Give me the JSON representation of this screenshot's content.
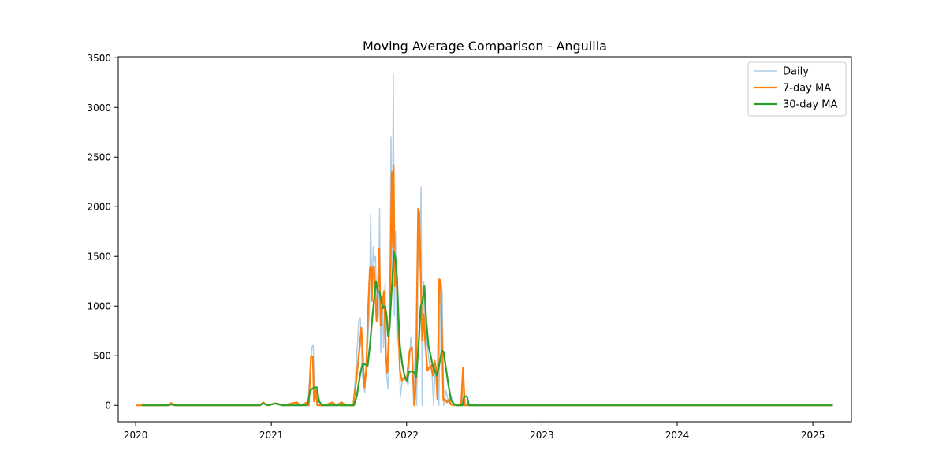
{
  "chart_data": {
    "type": "line",
    "title": "Moving Average Comparison - Anguilla",
    "xlabel": "",
    "ylabel": "",
    "x_type": "date",
    "xlim": [
      "2019-11-15",
      "2025-04-15"
    ],
    "ylim": [
      -165,
      3510
    ],
    "x_ticks": [
      {
        "value": "2020-01-01",
        "label": "2020"
      },
      {
        "value": "2021-01-01",
        "label": "2021"
      },
      {
        "value": "2022-01-01",
        "label": "2022"
      },
      {
        "value": "2023-01-01",
        "label": "2023"
      },
      {
        "value": "2024-01-01",
        "label": "2024"
      },
      {
        "value": "2025-01-01",
        "label": "2025"
      }
    ],
    "y_ticks": [
      {
        "value": 0,
        "label": "0"
      },
      {
        "value": 500,
        "label": "500"
      },
      {
        "value": 1000,
        "label": "1000"
      },
      {
        "value": 1500,
        "label": "1500"
      },
      {
        "value": 2000,
        "label": "2000"
      },
      {
        "value": 2500,
        "label": "2500"
      },
      {
        "value": 3000,
        "label": "3000"
      },
      {
        "value": 3500,
        "label": "3500"
      }
    ],
    "grid": false,
    "legend_position": "top-right",
    "series": [
      {
        "name": "Daily",
        "color": "#aecde6",
        "points": [
          [
            "2020-01-03",
            0
          ],
          [
            "2020-04-01",
            0
          ],
          [
            "2020-04-05",
            20
          ],
          [
            "2020-04-10",
            0
          ],
          [
            "2020-12-01",
            0
          ],
          [
            "2020-12-10",
            30
          ],
          [
            "2020-12-20",
            0
          ],
          [
            "2021-01-15",
            20
          ],
          [
            "2021-02-01",
            0
          ],
          [
            "2021-03-10",
            30
          ],
          [
            "2021-03-20",
            0
          ],
          [
            "2021-04-10",
            30
          ],
          [
            "2021-04-20",
            580
          ],
          [
            "2021-04-24",
            610
          ],
          [
            "2021-04-28",
            40
          ],
          [
            "2021-05-03",
            150
          ],
          [
            "2021-05-07",
            0
          ],
          [
            "2021-05-25",
            0
          ],
          [
            "2021-06-15",
            30
          ],
          [
            "2021-06-25",
            0
          ],
          [
            "2021-07-10",
            30
          ],
          [
            "2021-07-20",
            0
          ],
          [
            "2021-08-10",
            0
          ],
          [
            "2021-08-18",
            400
          ],
          [
            "2021-08-25",
            850
          ],
          [
            "2021-08-29",
            880
          ],
          [
            "2021-09-04",
            300
          ],
          [
            "2021-09-10",
            130
          ],
          [
            "2021-09-16",
            500
          ],
          [
            "2021-09-22",
            900
          ],
          [
            "2021-09-26",
            1920
          ],
          [
            "2021-09-29",
            1100
          ],
          [
            "2021-10-03",
            1600
          ],
          [
            "2021-10-06",
            1450
          ],
          [
            "2021-10-09",
            1500
          ],
          [
            "2021-10-13",
            850
          ],
          [
            "2021-10-17",
            900
          ],
          [
            "2021-10-20",
            1980
          ],
          [
            "2021-10-23",
            530
          ],
          [
            "2021-10-27",
            1100
          ],
          [
            "2021-10-31",
            580
          ],
          [
            "2021-11-04",
            1240
          ],
          [
            "2021-11-08",
            300
          ],
          [
            "2021-11-12",
            170
          ],
          [
            "2021-11-16",
            800
          ],
          [
            "2021-11-20",
            2700
          ],
          [
            "2021-11-23",
            1200
          ],
          [
            "2021-11-26",
            3340
          ],
          [
            "2021-11-29",
            900
          ],
          [
            "2021-12-02",
            1750
          ],
          [
            "2021-12-06",
            600
          ],
          [
            "2021-12-10",
            1000
          ],
          [
            "2021-12-15",
            80
          ],
          [
            "2021-12-20",
            250
          ],
          [
            "2021-12-28",
            300
          ],
          [
            "2022-01-05",
            200
          ],
          [
            "2022-01-12",
            680
          ],
          [
            "2022-01-16",
            600
          ],
          [
            "2022-01-20",
            0
          ],
          [
            "2022-01-24",
            580
          ],
          [
            "2022-01-28",
            0
          ],
          [
            "2022-02-02",
            1980
          ],
          [
            "2022-02-06",
            1400
          ],
          [
            "2022-02-09",
            2200
          ],
          [
            "2022-02-12",
            0
          ],
          [
            "2022-02-16",
            1250
          ],
          [
            "2022-02-20",
            800
          ],
          [
            "2022-02-26",
            600
          ],
          [
            "2022-03-04",
            400
          ],
          [
            "2022-03-10",
            350
          ],
          [
            "2022-03-15",
            0
          ],
          [
            "2022-03-19",
            400
          ],
          [
            "2022-03-24",
            350
          ],
          [
            "2022-03-29",
            0
          ],
          [
            "2022-04-03",
            1270
          ],
          [
            "2022-04-07",
            1150
          ],
          [
            "2022-04-11",
            0
          ],
          [
            "2022-04-17",
            150
          ],
          [
            "2022-04-24",
            30
          ],
          [
            "2022-05-01",
            100
          ],
          [
            "2022-05-10",
            0
          ],
          [
            "2022-06-01",
            0
          ],
          [
            "2022-06-03",
            380
          ],
          [
            "2022-06-07",
            0
          ],
          [
            "2025-02-24",
            0
          ]
        ]
      },
      {
        "name": "7-day MA",
        "color": "#ff7f0e",
        "points": [
          [
            "2020-01-03",
            0
          ],
          [
            "2020-04-01",
            0
          ],
          [
            "2020-04-06",
            25
          ],
          [
            "2020-04-12",
            0
          ],
          [
            "2020-12-01",
            0
          ],
          [
            "2020-12-10",
            30
          ],
          [
            "2020-12-20",
            0
          ],
          [
            "2021-01-15",
            20
          ],
          [
            "2021-02-01",
            0
          ],
          [
            "2021-03-10",
            30
          ],
          [
            "2021-03-20",
            0
          ],
          [
            "2021-04-08",
            30
          ],
          [
            "2021-04-12",
            0
          ],
          [
            "2021-04-18",
            500
          ],
          [
            "2021-04-23",
            490
          ],
          [
            "2021-04-26",
            40
          ],
          [
            "2021-05-01",
            150
          ],
          [
            "2021-05-05",
            0
          ],
          [
            "2021-05-25",
            0
          ],
          [
            "2021-06-15",
            30
          ],
          [
            "2021-06-25",
            0
          ],
          [
            "2021-07-10",
            30
          ],
          [
            "2021-07-20",
            0
          ],
          [
            "2021-08-10",
            0
          ],
          [
            "2021-08-18",
            250
          ],
          [
            "2021-08-25",
            500
          ],
          [
            "2021-09-01",
            780
          ],
          [
            "2021-09-05",
            500
          ],
          [
            "2021-09-09",
            180
          ],
          [
            "2021-09-14",
            350
          ],
          [
            "2021-09-19",
            950
          ],
          [
            "2021-09-24",
            1380
          ],
          [
            "2021-09-27",
            1400
          ],
          [
            "2021-09-29",
            1050
          ],
          [
            "2021-10-02",
            1380
          ],
          [
            "2021-10-05",
            1400
          ],
          [
            "2021-10-08",
            1150
          ],
          [
            "2021-10-12",
            850
          ],
          [
            "2021-10-16",
            1250
          ],
          [
            "2021-10-19",
            1580
          ],
          [
            "2021-10-23",
            800
          ],
          [
            "2021-10-27",
            1000
          ],
          [
            "2021-11-01",
            1150
          ],
          [
            "2021-11-06",
            500
          ],
          [
            "2021-11-10",
            330
          ],
          [
            "2021-11-15",
            800
          ],
          [
            "2021-11-19",
            1500
          ],
          [
            "2021-11-22",
            2350
          ],
          [
            "2021-11-25",
            1600
          ],
          [
            "2021-11-27",
            2420
          ],
          [
            "2021-11-30",
            1200
          ],
          [
            "2021-12-04",
            1350
          ],
          [
            "2021-12-07",
            1100
          ],
          [
            "2021-12-10",
            780
          ],
          [
            "2021-12-14",
            350
          ],
          [
            "2021-12-19",
            250
          ],
          [
            "2021-12-25",
            280
          ],
          [
            "2022-01-01",
            250
          ],
          [
            "2022-01-09",
            550
          ],
          [
            "2022-01-15",
            590
          ],
          [
            "2022-01-18",
            300
          ],
          [
            "2022-01-22",
            0
          ],
          [
            "2022-01-26",
            250
          ],
          [
            "2022-02-01",
            1980
          ],
          [
            "2022-02-04",
            1940
          ],
          [
            "2022-02-08",
            1300
          ],
          [
            "2022-02-12",
            650
          ],
          [
            "2022-02-16",
            920
          ],
          [
            "2022-02-20",
            650
          ],
          [
            "2022-02-26",
            350
          ],
          [
            "2022-03-03",
            380
          ],
          [
            "2022-03-08",
            400
          ],
          [
            "2022-03-13",
            300
          ],
          [
            "2022-03-17",
            450
          ],
          [
            "2022-03-21",
            380
          ],
          [
            "2022-03-25",
            60
          ],
          [
            "2022-03-30",
            1270
          ],
          [
            "2022-04-03",
            1250
          ],
          [
            "2022-04-07",
            600
          ],
          [
            "2022-04-10",
            50
          ],
          [
            "2022-04-15",
            60
          ],
          [
            "2022-04-20",
            30
          ],
          [
            "2022-04-25",
            60
          ],
          [
            "2022-04-30",
            10
          ],
          [
            "2022-05-10",
            0
          ],
          [
            "2022-05-28",
            0
          ],
          [
            "2022-06-02",
            380
          ],
          [
            "2022-06-07",
            0
          ],
          [
            "2025-02-24",
            0
          ]
        ]
      },
      {
        "name": "30-day MA",
        "color": "#2ca02c",
        "points": [
          [
            "2020-01-18",
            0
          ],
          [
            "2020-03-25",
            0
          ],
          [
            "2020-04-05",
            10
          ],
          [
            "2020-04-20",
            0
          ],
          [
            "2020-12-01",
            0
          ],
          [
            "2020-12-10",
            20
          ],
          [
            "2020-12-25",
            0
          ],
          [
            "2021-01-10",
            20
          ],
          [
            "2021-01-30",
            0
          ],
          [
            "2021-04-08",
            0
          ],
          [
            "2021-04-16",
            150
          ],
          [
            "2021-04-26",
            180
          ],
          [
            "2021-05-04",
            180
          ],
          [
            "2021-05-10",
            40
          ],
          [
            "2021-05-18",
            0
          ],
          [
            "2021-08-12",
            0
          ],
          [
            "2021-08-20",
            100
          ],
          [
            "2021-08-28",
            300
          ],
          [
            "2021-09-04",
            420
          ],
          [
            "2021-09-12",
            410
          ],
          [
            "2021-09-18",
            400
          ],
          [
            "2021-09-24",
            600
          ],
          [
            "2021-10-01",
            900
          ],
          [
            "2021-10-06",
            1100
          ],
          [
            "2021-10-10",
            1250
          ],
          [
            "2021-10-15",
            1150
          ],
          [
            "2021-10-20",
            1140
          ],
          [
            "2021-10-25",
            1050
          ],
          [
            "2021-10-30",
            980
          ],
          [
            "2021-11-04",
            1000
          ],
          [
            "2021-11-08",
            900
          ],
          [
            "2021-11-12",
            700
          ],
          [
            "2021-11-16",
            780
          ],
          [
            "2021-11-20",
            1050
          ],
          [
            "2021-11-24",
            1300
          ],
          [
            "2021-11-28",
            1540
          ],
          [
            "2021-12-02",
            1480
          ],
          [
            "2021-12-06",
            1280
          ],
          [
            "2021-12-10",
            900
          ],
          [
            "2021-12-14",
            600
          ],
          [
            "2021-12-20",
            420
          ],
          [
            "2021-12-26",
            300
          ],
          [
            "2022-01-01",
            250
          ],
          [
            "2022-01-08",
            340
          ],
          [
            "2022-01-15",
            340
          ],
          [
            "2022-01-22",
            330
          ],
          [
            "2022-01-27",
            280
          ],
          [
            "2022-02-03",
            650
          ],
          [
            "2022-02-08",
            1000
          ],
          [
            "2022-02-13",
            1050
          ],
          [
            "2022-02-18",
            1200
          ],
          [
            "2022-02-23",
            850
          ],
          [
            "2022-03-01",
            600
          ],
          [
            "2022-03-06",
            520
          ],
          [
            "2022-03-12",
            400
          ],
          [
            "2022-03-18",
            350
          ],
          [
            "2022-03-24",
            300
          ],
          [
            "2022-03-31",
            430
          ],
          [
            "2022-04-06",
            550
          ],
          [
            "2022-04-11",
            540
          ],
          [
            "2022-04-16",
            400
          ],
          [
            "2022-04-24",
            200
          ],
          [
            "2022-05-01",
            50
          ],
          [
            "2022-05-08",
            15
          ],
          [
            "2022-05-18",
            0
          ],
          [
            "2022-06-01",
            0
          ],
          [
            "2022-06-05",
            90
          ],
          [
            "2022-06-13",
            90
          ],
          [
            "2022-06-18",
            0
          ],
          [
            "2025-02-24",
            0
          ]
        ]
      }
    ]
  }
}
